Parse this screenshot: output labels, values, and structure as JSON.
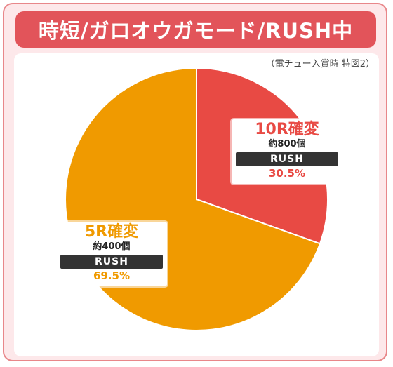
{
  "title": "時短/ガロオウガモード/RUSH中",
  "note": "（電チュー入賞時 特図2）",
  "colors": {
    "frame": "#e2545a",
    "tenR": "#e84a44",
    "fiveR": "#f09a00"
  },
  "chart_data": {
    "type": "pie",
    "slices": [
      {
        "name": "10R確変",
        "count": "約800個",
        "mode": "RUSH",
        "value": 30.5,
        "label": "30.5%",
        "color": "#e84a44"
      },
      {
        "name": "5R確変",
        "count": "約400個",
        "mode": "RUSH",
        "value": 69.5,
        "label": "69.5%",
        "color": "#f09a00"
      }
    ],
    "start": "12 o'clock",
    "direction": "clockwise"
  }
}
